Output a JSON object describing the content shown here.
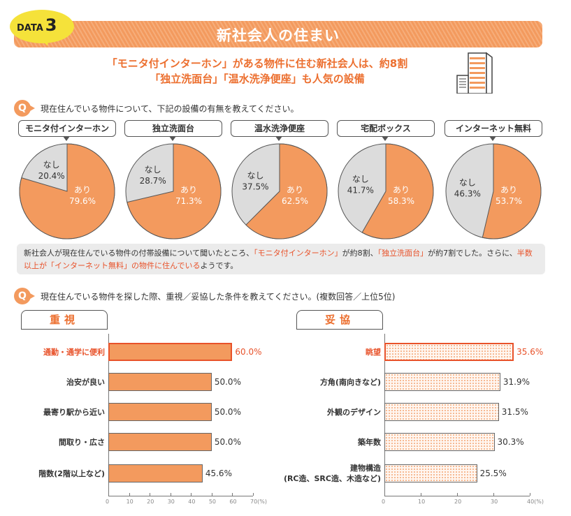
{
  "header": {
    "badge_prefix": "DATA",
    "badge_number": "3",
    "title": "新社会人の住まい",
    "headline_line1": "「モニタ付インターホン」がある物件に住む新社会人は、約8割",
    "headline_line2": "「独立洗面台」「温水洗浄便座」も人気の設備",
    "icon": "building-icon"
  },
  "question1": {
    "badge": "Q",
    "text": "現在住んでいる物件について、下記の設備の有無を教えてください。"
  },
  "note": {
    "parts": [
      {
        "text": "新社会人が現在住んでいる物件の付帯設備について聞いたところ、",
        "highlight": false
      },
      {
        "text": "「モニタ付インターホン」",
        "highlight": true
      },
      {
        "text": "が約8割、",
        "highlight": false
      },
      {
        "text": "「独立洗面台」",
        "highlight": true
      },
      {
        "text": "が約7割でした。",
        "highlight": false
      },
      {
        "text": "さらに、",
        "highlight": false
      },
      {
        "text": "半数以上が「インターネット無料」の物件に住んでいる",
        "highlight": true
      },
      {
        "text": "ようです。",
        "highlight": false
      }
    ]
  },
  "question2": {
    "badge": "Q",
    "text": "現在住んでいる物件を探した際、重視／妥協した条件を教えてください。(複数回答／上位5位)"
  },
  "colors": {
    "accent": "#f39a5e",
    "highlight_red": "#e8522a",
    "pie_no": "#dcdcdc",
    "badge_yellow": "#f5e23a"
  },
  "chart_data": [
    {
      "type": "pie",
      "title": "モニタ付インターホン",
      "slices": [
        {
          "label": "あり",
          "value": 79.6,
          "display": "79.6%"
        },
        {
          "label": "なし",
          "value": 20.4,
          "display": "20.4%"
        }
      ]
    },
    {
      "type": "pie",
      "title": "独立洗面台",
      "slices": [
        {
          "label": "あり",
          "value": 71.3,
          "display": "71.3%"
        },
        {
          "label": "なし",
          "value": 28.7,
          "display": "28.7%"
        }
      ]
    },
    {
      "type": "pie",
      "title": "温水洗浄便座",
      "slices": [
        {
          "label": "あり",
          "value": 62.5,
          "display": "62.5%"
        },
        {
          "label": "なし",
          "value": 37.5,
          "display": "37.5%"
        }
      ]
    },
    {
      "type": "pie",
      "title": "宅配ボックス",
      "slices": [
        {
          "label": "あり",
          "value": 58.3,
          "display": "58.3%"
        },
        {
          "label": "なし",
          "value": 41.7,
          "display": "41.7%"
        }
      ]
    },
    {
      "type": "pie",
      "title": "インターネット無料",
      "slices": [
        {
          "label": "あり",
          "value": 53.7,
          "display": "53.7%"
        },
        {
          "label": "なし",
          "value": 46.3,
          "display": "46.3%"
        }
      ]
    },
    {
      "type": "bar",
      "orientation": "horizontal",
      "title": "重視",
      "categories": [
        "通勤・通学に便利",
        "治安が良い",
        "最寄り駅から近い",
        "間取り・広さ",
        "階数(2階以上など)"
      ],
      "values": [
        60.0,
        50.0,
        50.0,
        50.0,
        45.6
      ],
      "value_labels": [
        "60.0%",
        "50.0%",
        "50.0%",
        "50.0%",
        "45.6%"
      ],
      "highlight_index": 0,
      "xlim": [
        0,
        70
      ],
      "xticks": [
        0,
        10,
        20,
        30,
        40,
        50,
        60,
        70
      ],
      "xunit": "(%)",
      "fill": "solid"
    },
    {
      "type": "bar",
      "orientation": "horizontal",
      "title": "妥協",
      "categories": [
        "眺望",
        "方角(南向きなど)",
        "外観のデザイン",
        "築年数",
        "建物構造\n(RC造、SRC造、木造など)"
      ],
      "values": [
        35.6,
        31.9,
        31.5,
        30.3,
        25.5
      ],
      "value_labels": [
        "35.6%",
        "31.9%",
        "31.5%",
        "30.3%",
        "25.5%"
      ],
      "highlight_index": 0,
      "xlim": [
        0,
        40
      ],
      "xticks": [
        0,
        10,
        20,
        30,
        40
      ],
      "xunit": "(%)",
      "fill": "dotted"
    }
  ]
}
